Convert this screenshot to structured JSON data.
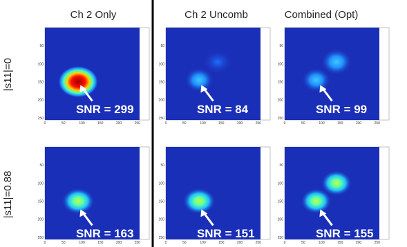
{
  "column_titles": [
    "Ch 2 Only",
    "Ch 2 Uncomb",
    "Combined (Opt)"
  ],
  "row_labels": [
    "|s11|=0",
    "|s11|=0.88"
  ],
  "axis_ticks": [
    0,
    50,
    100,
    150,
    200,
    250
  ],
  "panels": [
    [
      "SNR = 299",
      "SNR = 84",
      "SNR = 99"
    ],
    [
      "SNR = 163",
      "SNR = 151",
      "SNR = 155"
    ]
  ]
}
